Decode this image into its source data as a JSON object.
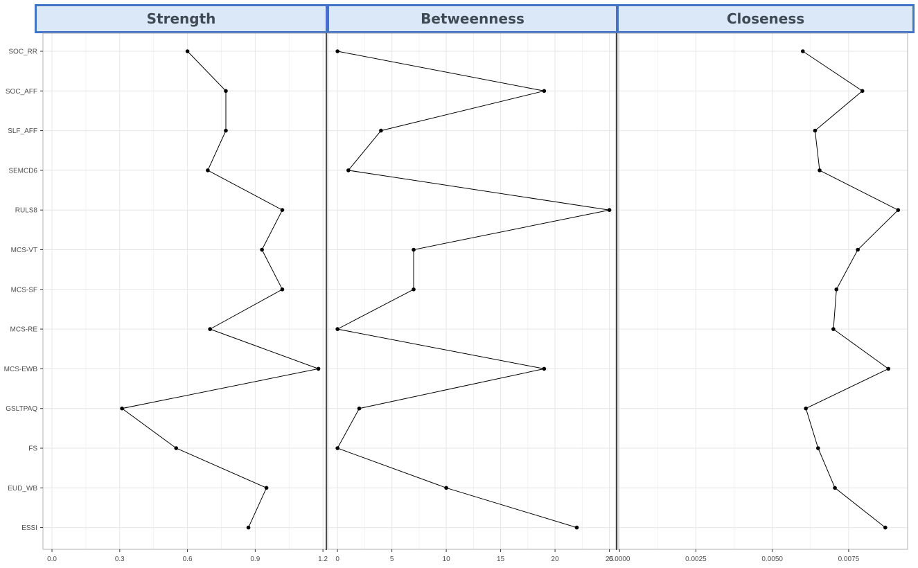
{
  "chart_data": {
    "type": "line",
    "orientation": "horizontal",
    "categories": [
      "SOC_RR",
      "SOC_AFF",
      "SLF_AFF",
      "SEMCD6",
      "RULS8",
      "MCS-VT",
      "MCS-SF",
      "MCS-RE",
      "MCS-EWB",
      "GSLTPAQ",
      "FS",
      "EUD_WB",
      "ESSI"
    ],
    "grid": true,
    "panels": [
      {
        "title": "Strength",
        "xlim": [
          -0.04,
          1.215
        ],
        "ticks": [
          0.0,
          0.3,
          0.6,
          0.9,
          1.2
        ],
        "tick_labels": [
          "0.0",
          "0.3",
          "0.6",
          "0.9",
          "1.2"
        ],
        "values": [
          0.6,
          0.77,
          0.77,
          0.69,
          1.02,
          0.93,
          1.02,
          0.7,
          1.18,
          0.31,
          0.55,
          0.95,
          0.87
        ]
      },
      {
        "title": "Betweenness",
        "xlim": [
          -0.9,
          25.6
        ],
        "ticks": [
          0,
          5,
          10,
          15,
          20,
          25
        ],
        "tick_labels": [
          "0",
          "5",
          "10",
          "15",
          "20",
          "25"
        ],
        "values": [
          0,
          19,
          4,
          1,
          25,
          7,
          7,
          0,
          19,
          2,
          0,
          10,
          22
        ]
      },
      {
        "title": "Closeness",
        "xlim": [
          -5e-05,
          0.00943
        ],
        "ticks": [
          0.0,
          0.0025,
          0.005,
          0.0075
        ],
        "tick_labels": [
          "0.0000",
          "0.0025",
          "0.0050",
          "0.0075"
        ],
        "values": [
          0.006,
          0.00795,
          0.0064,
          0.00655,
          0.00912,
          0.0078,
          0.0071,
          0.007,
          0.0088,
          0.0061,
          0.0065,
          0.00705,
          0.0087
        ]
      }
    ]
  }
}
